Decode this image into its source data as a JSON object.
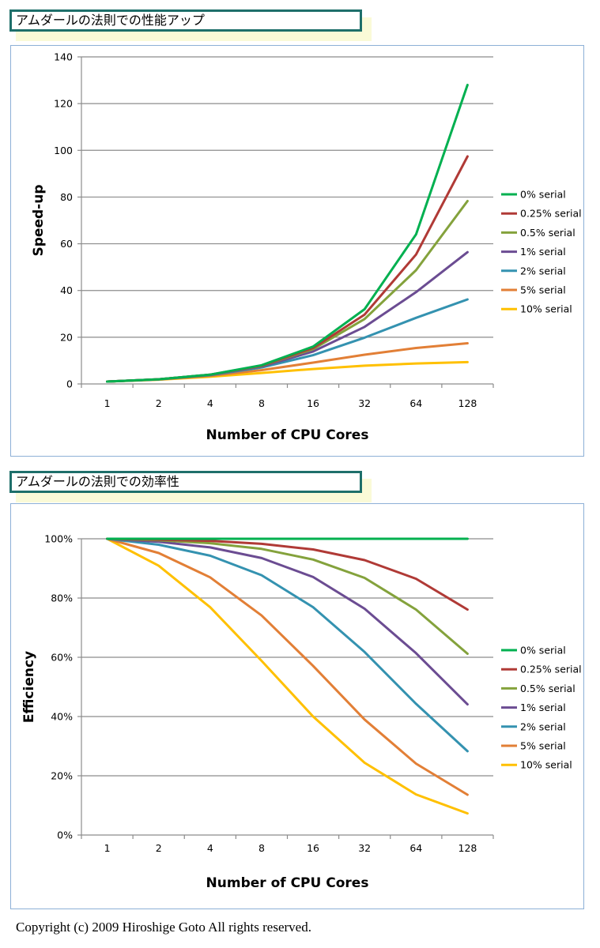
{
  "copyright": "Copyright (c) 2009 Hiroshige Goto All rights reserved.",
  "chart_data": [
    {
      "type": "line",
      "title": "アムダールの法則での性能アップ",
      "xlabel": "Number of CPU Cores",
      "ylabel": "Speed-up",
      "categories": [
        "1",
        "2",
        "4",
        "8",
        "16",
        "32",
        "64",
        "128"
      ],
      "ylim": [
        0,
        140
      ],
      "yticks": [
        0,
        20,
        40,
        60,
        80,
        100,
        120,
        140
      ],
      "ytick_labels": [
        "0",
        "20",
        "40",
        "60",
        "80",
        "100",
        "120",
        "140"
      ],
      "grid": true,
      "legend_position": "right",
      "series": [
        {
          "name": "0% serial",
          "color": "#00b050",
          "values": [
            1,
            2,
            4,
            8,
            16,
            32,
            64,
            128
          ]
        },
        {
          "name": "0.25% serial",
          "color": "#b03a36",
          "values": [
            1,
            1.99,
            3.97,
            7.86,
            15.4,
            29.7,
            55.4,
            97.4
          ]
        },
        {
          "name": "0.5% serial",
          "color": "#84a23c",
          "values": [
            1,
            1.99,
            3.94,
            7.73,
            14.9,
            27.8,
            48.7,
            78.3
          ]
        },
        {
          "name": "1% serial",
          "color": "#6b4c92",
          "values": [
            1,
            1.98,
            3.88,
            7.48,
            13.9,
            24.4,
            39.3,
            56.4
          ]
        },
        {
          "name": "2% serial",
          "color": "#3492b0",
          "values": [
            1,
            1.96,
            3.77,
            7.02,
            12.3,
            19.8,
            28.3,
            36.2
          ]
        },
        {
          "name": "5% serial",
          "color": "#e27f36",
          "values": [
            1,
            1.9,
            3.48,
            5.93,
            9.14,
            12.5,
            15.4,
            17.4
          ]
        },
        {
          "name": "10% serial",
          "color": "#ffc000",
          "values": [
            1,
            1.82,
            3.08,
            4.71,
            6.4,
            7.8,
            8.77,
            9.34
          ]
        }
      ]
    },
    {
      "type": "line",
      "title": "アムダールの法則での効率性",
      "xlabel": "Number of CPU Cores",
      "ylabel": "Efficiency",
      "categories": [
        "1",
        "2",
        "4",
        "8",
        "16",
        "32",
        "64",
        "128"
      ],
      "ylim": [
        0,
        1
      ],
      "yticks": [
        0,
        0.2,
        0.4,
        0.6,
        0.8,
        1.0
      ],
      "ytick_labels": [
        "0%",
        "20%",
        "40%",
        "60%",
        "80%",
        "100%"
      ],
      "grid": true,
      "legend_position": "right",
      "series": [
        {
          "name": "0% serial",
          "color": "#00b050",
          "values": [
            1,
            1,
            1,
            1,
            1,
            1,
            1,
            1
          ]
        },
        {
          "name": "0.25% serial",
          "color": "#b03a36",
          "values": [
            1,
            0.997,
            0.993,
            0.983,
            0.964,
            0.928,
            0.865,
            0.761
          ]
        },
        {
          "name": "0.5% serial",
          "color": "#84a23c",
          "values": [
            1,
            0.995,
            0.985,
            0.966,
            0.93,
            0.868,
            0.761,
            0.612
          ]
        },
        {
          "name": "1% serial",
          "color": "#6b4c92",
          "values": [
            1,
            0.99,
            0.971,
            0.935,
            0.871,
            0.764,
            0.614,
            0.441
          ]
        },
        {
          "name": "2% serial",
          "color": "#3492b0",
          "values": [
            1,
            0.98,
            0.943,
            0.877,
            0.769,
            0.618,
            0.443,
            0.283
          ]
        },
        {
          "name": "5% serial",
          "color": "#e27f36",
          "values": [
            1,
            0.952,
            0.87,
            0.741,
            0.571,
            0.39,
            0.241,
            0.136
          ]
        },
        {
          "name": "10% serial",
          "color": "#ffc000",
          "values": [
            1,
            0.909,
            0.769,
            0.588,
            0.4,
            0.244,
            0.137,
            0.073
          ]
        }
      ]
    }
  ]
}
